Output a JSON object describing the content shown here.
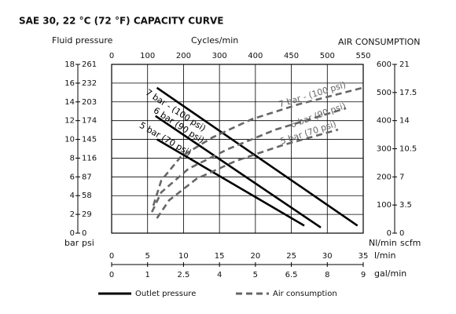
{
  "chart_data": {
    "type": "line",
    "title": "SAE 30, 22 °C (72 °F) CAPACITY CURVE",
    "y_axis_title": "Fluid pressure",
    "y2_axis_title": "AIR CONSUMPTION",
    "y_units": [
      "bar",
      "psi"
    ],
    "y2_units": [
      "Nl/min",
      "scfm"
    ],
    "x_units": "l/min",
    "xlim": [
      0,
      35
    ],
    "xticks": [
      0,
      5,
      10,
      15,
      20,
      25,
      30,
      35
    ],
    "ylim": [
      0,
      18
    ],
    "yticks": [
      0,
      2,
      4,
      6,
      8,
      10,
      12,
      14,
      16,
      18
    ],
    "y2lim": [
      0,
      600
    ],
    "y2ticks": [
      0,
      100,
      200,
      300,
      400,
      500,
      600
    ],
    "psi_ticks": [
      0,
      {
        "value": 2,
        "label": "29"
      },
      {
        "value": 4,
        "label": "58"
      },
      {
        "value": 6,
        "label": "87"
      },
      {
        "value": 8,
        "label": "116"
      },
      {
        "value": 10,
        "label": "145"
      },
      {
        "value": 12,
        "label": "174"
      },
      {
        "value": 14,
        "label": "203"
      },
      {
        "value": 16,
        "label": "232"
      },
      {
        "value": 18,
        "label": "261"
      }
    ],
    "scfm_ticks": [
      0,
      {
        "value": 100,
        "label": "3.5"
      },
      {
        "value": 200,
        "label": "7"
      },
      {
        "value": 300,
        "label": "10.5"
      },
      {
        "value": 400,
        "label": "14"
      },
      {
        "value": 500,
        "label": "17.5"
      },
      {
        "value": 600,
        "label": "21"
      }
    ],
    "cycles_axis": {
      "title": "Cycles/min",
      "ticks": [
        0,
        {
          "value": 5,
          "label": "100"
        },
        {
          "value": 10,
          "label": "200"
        },
        {
          "value": 15,
          "label": "300"
        },
        {
          "value": 20,
          "label": "400"
        },
        {
          "value": 25,
          "label": "450"
        },
        {
          "value": 30,
          "label": "500"
        },
        {
          "value": 35,
          "label": "550"
        }
      ]
    },
    "gal_axis": {
      "title": "gal/min",
      "ticks": [
        0,
        {
          "value": 5,
          "label": "1"
        },
        {
          "value": 10,
          "label": "2.5"
        },
        {
          "value": 15,
          "label": "4"
        },
        {
          "value": 20,
          "label": "5"
        },
        {
          "value": 25,
          "label": "6.5"
        },
        {
          "value": 30,
          "label": "8"
        },
        {
          "value": 35,
          "label": "9"
        }
      ]
    },
    "grid": true,
    "legend": [
      {
        "label": "Outlet pressure",
        "color": "#000000",
        "style": "solid"
      },
      {
        "label": "Air consumption",
        "color": "#666666",
        "style": "dashed"
      }
    ],
    "series": [
      {
        "name": "7 bar - (100 psi)",
        "color": "#000000",
        "style": "solid",
        "x": [
          6.3,
          34.2
        ],
        "values": [
          15.5,
          0.8
        ]
      },
      {
        "name": "6 bar (90 psi)",
        "color": "#000000",
        "style": "solid",
        "x": [
          6.1,
          29.1
        ],
        "values": [
          12.5,
          0.6
        ]
      },
      {
        "name": "5 bar (70 psi)",
        "color": "#000000",
        "style": "solid",
        "x": [
          6.3,
          26.8
        ],
        "values": [
          10.0,
          0.8
        ]
      },
      {
        "name": "7 bar - (100 psi)",
        "color": "#666666",
        "style": "dashed",
        "axis": "y2",
        "x": [
          5.8,
          6.9,
          9.6,
          14,
          19.5,
          26,
          34.8
        ],
        "values": [
          98,
          187,
          271,
          340,
          405,
          458,
          516
        ]
      },
      {
        "name": "6 bar (90 psi)",
        "color": "#666666",
        "style": "dashed",
        "axis": "y2",
        "x": [
          5.6,
          6.9,
          10.7,
          16.2,
          22.8,
          32.6
        ],
        "values": [
          75,
          145,
          229,
          299,
          368,
          444
        ]
      },
      {
        "name": "5 bar (70 psi)",
        "color": "#666666",
        "style": "dashed",
        "axis": "y2",
        "x": [
          6.3,
          8,
          11.8,
          17.3,
          23.8,
          31.5
        ],
        "values": [
          53,
          117,
          193,
          257,
          313,
          368
        ]
      }
    ]
  }
}
